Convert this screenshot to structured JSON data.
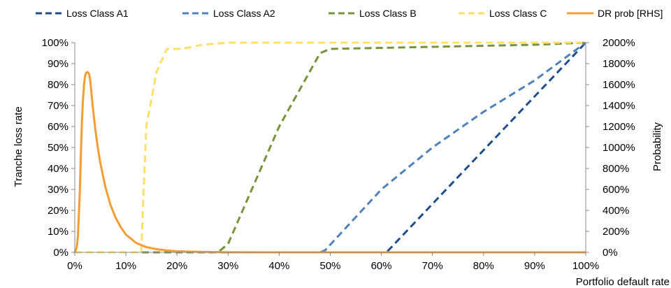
{
  "chart_data": {
    "type": "line",
    "x_axis": {
      "label": "Portfolio default rate",
      "range": [
        0,
        1
      ],
      "ticks": [
        "0%",
        "10%",
        "20%",
        "30%",
        "40%",
        "50%",
        "60%",
        "70%",
        "80%",
        "90%",
        "100%"
      ]
    },
    "y_axis_left": {
      "label": "Tranche loss rate",
      "range": [
        0,
        1
      ],
      "ticks": [
        "0%",
        "10%",
        "20%",
        "30%",
        "40%",
        "50%",
        "60%",
        "70%",
        "80%",
        "90%",
        "100%"
      ]
    },
    "y_axis_right": {
      "label": "Probability",
      "range": [
        0,
        20
      ],
      "ticks": [
        "0%",
        "200%",
        "400%",
        "600%",
        "800%",
        "1000%",
        "1200%",
        "1400%",
        "1600%",
        "1800%",
        "2000%"
      ]
    },
    "legend_position": "top",
    "grid": false,
    "series": [
      {
        "name": "Loss Class A1",
        "axis": "left",
        "style": "dashed",
        "color": "#1F4E8C",
        "points": [
          [
            0,
            0
          ],
          [
            0.6,
            0
          ],
          [
            0.61,
            0
          ],
          [
            1.0,
            1.0
          ]
        ]
      },
      {
        "name": "Loss Class A2",
        "axis": "left",
        "style": "dashed",
        "color": "#4F81BD",
        "points": [
          [
            0,
            0
          ],
          [
            0.48,
            0
          ],
          [
            0.49,
            0.01
          ],
          [
            0.6,
            0.3
          ],
          [
            0.7,
            0.5
          ],
          [
            0.8,
            0.67
          ],
          [
            0.9,
            0.82
          ],
          [
            1.0,
            1.0
          ]
        ]
      },
      {
        "name": "Loss Class B",
        "axis": "left",
        "style": "dashed",
        "color": "#77933C",
        "points": [
          [
            0,
            0
          ],
          [
            0.28,
            0
          ],
          [
            0.3,
            0.04
          ],
          [
            0.4,
            0.6
          ],
          [
            0.48,
            0.95
          ],
          [
            0.5,
            0.97
          ],
          [
            0.6,
            0.975
          ],
          [
            0.7,
            0.98
          ],
          [
            0.8,
            0.985
          ],
          [
            0.9,
            0.99
          ],
          [
            1.0,
            1.0
          ]
        ]
      },
      {
        "name": "Loss Class C",
        "axis": "left",
        "style": "dashed",
        "color": "#FFE066",
        "points": [
          [
            0,
            0
          ],
          [
            0.13,
            0
          ],
          [
            0.14,
            0.6
          ],
          [
            0.16,
            0.86
          ],
          [
            0.18,
            0.97
          ],
          [
            0.2,
            0.97
          ],
          [
            0.22,
            0.975
          ],
          [
            0.25,
            0.99
          ],
          [
            0.3,
            1.0
          ],
          [
            0.5,
            1.0
          ],
          [
            0.7,
            1.0
          ],
          [
            1.0,
            1.0
          ]
        ]
      },
      {
        "name": "DR prob [RHS]",
        "axis": "right",
        "style": "solid",
        "color": "#F59C32",
        "points": [
          [
            0,
            0
          ],
          [
            0.004,
            0.5
          ],
          [
            0.006,
            1.5
          ],
          [
            0.008,
            3.5
          ],
          [
            0.01,
            6
          ],
          [
            0.012,
            9.5
          ],
          [
            0.014,
            12.5
          ],
          [
            0.016,
            14.5
          ],
          [
            0.018,
            16
          ],
          [
            0.02,
            16.8
          ],
          [
            0.022,
            17.1
          ],
          [
            0.025,
            17.2
          ],
          [
            0.028,
            17
          ],
          [
            0.03,
            16.5
          ],
          [
            0.035,
            14
          ],
          [
            0.04,
            11.8
          ],
          [
            0.045,
            10
          ],
          [
            0.05,
            8.5
          ],
          [
            0.06,
            6.2
          ],
          [
            0.07,
            4.5
          ],
          [
            0.08,
            3.3
          ],
          [
            0.09,
            2.4
          ],
          [
            0.1,
            1.7
          ],
          [
            0.12,
            0.9
          ],
          [
            0.14,
            0.5
          ],
          [
            0.16,
            0.3
          ],
          [
            0.18,
            0.18
          ],
          [
            0.2,
            0.1
          ],
          [
            0.25,
            0.04
          ],
          [
            0.3,
            0.01
          ],
          [
            0.4,
            0
          ],
          [
            0.6,
            0
          ],
          [
            0.8,
            0
          ],
          [
            1.0,
            0
          ]
        ]
      }
    ]
  }
}
